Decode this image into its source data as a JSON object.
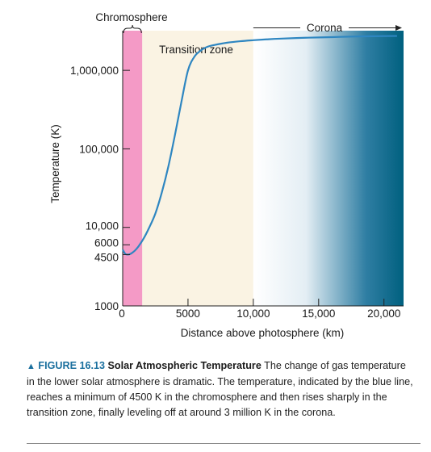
{
  "chart_data": {
    "type": "line",
    "title": "",
    "xlabel": "Distance above photosphere (km)",
    "ylabel": "Temperature (K)",
    "xlim": [
      0,
      21500
    ],
    "ylim": [
      1000,
      3200000
    ],
    "y_scale": "log",
    "x_ticks": [
      {
        "value": 0,
        "label": "0"
      },
      {
        "value": 5000,
        "label": "5000"
      },
      {
        "value": 10000,
        "label": "10,000"
      },
      {
        "value": 15000,
        "label": "15,000"
      },
      {
        "value": 20000,
        "label": "20,000"
      }
    ],
    "y_ticks": [
      {
        "value": 1000,
        "label": "1000"
      },
      {
        "value": 4500,
        "label": "4500"
      },
      {
        "value": 6000,
        "label": "6000"
      },
      {
        "value": 10000,
        "label": "10,000"
      },
      {
        "value": 100000,
        "label": "100,000"
      },
      {
        "value": 1000000,
        "label": "1,000,000"
      }
    ],
    "regions": [
      {
        "label": "Chromosphere",
        "x_start": 0,
        "x_end": 1500,
        "color": "#f49ac6"
      },
      {
        "label": "Transition zone",
        "x_start": 1500,
        "x_end": 10000,
        "color": "#faf3e3"
      },
      {
        "label": "Corona",
        "x_start": 10000,
        "x_end": 21500,
        "color": "#00607f"
      }
    ],
    "series": [
      {
        "color": "#2e86c1",
        "x": [
          0,
          200,
          400,
          600,
          900,
          1200,
          1600,
          2000,
          2500,
          3000,
          3500,
          4000,
          4500,
          5000,
          5500,
          6000,
          6500,
          7000,
          8000,
          9000,
          10000,
          11000,
          12000,
          14000,
          16000,
          18000,
          20000,
          21000
        ],
        "y": [
          5200,
          4600,
          4500,
          4600,
          5000,
          5700,
          7200,
          9700,
          15000,
          28000,
          60000,
          150000,
          400000,
          1000000,
          1500000,
          1800000,
          2000000,
          2100000,
          2250000,
          2350000,
          2420000,
          2480000,
          2530000,
          2600000,
          2650000,
          2700000,
          2730000,
          2740000
        ]
      }
    ]
  },
  "caption": {
    "label": "FIGURE 16.13",
    "title": "Solar Atmospheric Temperature",
    "text": "The change of gas temperature in the lower solar atmosphere is dramatic. The temperature, indicated by the blue line, reaches a minimum of 4500 K in the chromosphere and then rises sharply in the transition zone, finally leveling off at around 3 million K in the corona."
  },
  "colors": {
    "curve": "#2e86c1",
    "chromosphere": "#f49ac6",
    "transition": "#faf3e3",
    "corona_dark": "#00607f",
    "caption_accent": "#1a6f9e"
  }
}
